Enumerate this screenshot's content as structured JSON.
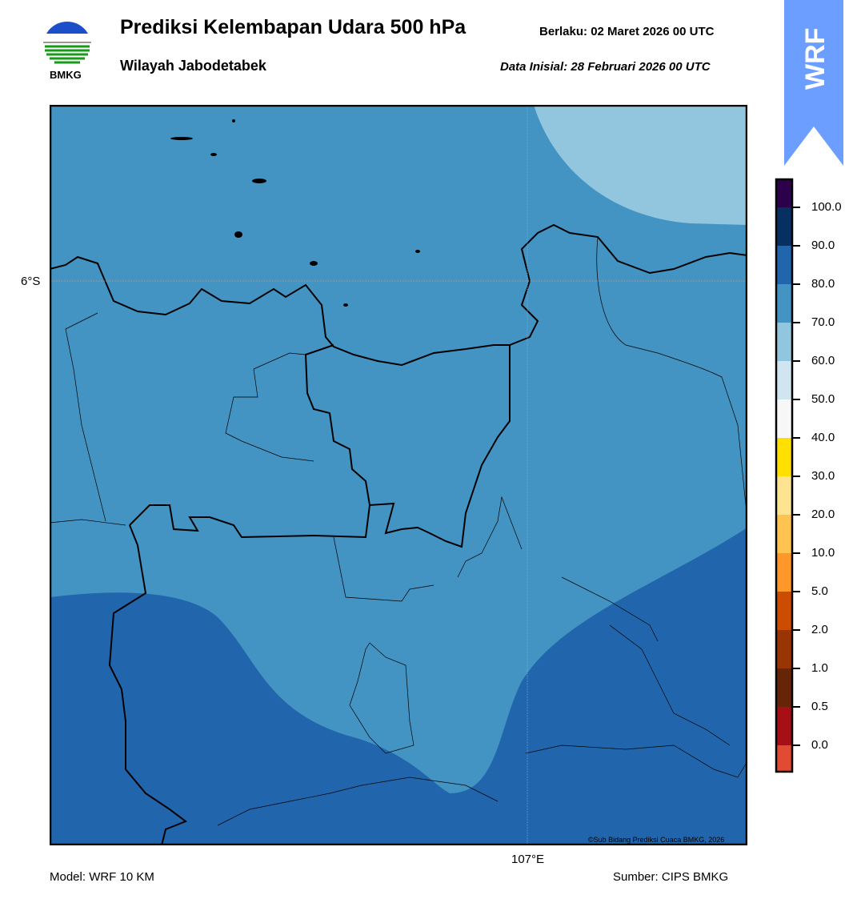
{
  "header": {
    "title": "Prediksi Kelembapan Udara 500 hPa",
    "subtitle": "Wilayah Jabodetabek",
    "valid": "Berlaku:  02 Maret 2026 00 UTC",
    "init": "Data Inisial:  28 Februari 2026 00 UTC"
  },
  "logo": {
    "text": "BMKG"
  },
  "badge": {
    "text": "WRF",
    "color": "#6b9eff"
  },
  "map": {
    "lat_label": "6°S",
    "lon_label": "107°E",
    "copyright": "©Sub Bidang Prediksi Cuaca BMKG, 2026",
    "fill_colors": {
      "base": "#4393c3",
      "light": "#92c5de",
      "dark": "#2166ac"
    }
  },
  "footer": {
    "model": "Model: WRF 10 KM",
    "source": "Sumber: CIPS BMKG"
  },
  "colorbar": {
    "labels": [
      "100.0",
      "90.0",
      "80.0",
      "70.0",
      "60.0",
      "50.0",
      "40.0",
      "30.0",
      "20.0",
      "10.0",
      "5.0",
      "2.0",
      "1.0",
      "0.5",
      "0.0"
    ],
    "colors": [
      "#2d004b",
      "#053061",
      "#2166ac",
      "#4393c3",
      "#92c5de",
      "#d1e5f0",
      "#f7f7f7",
      "#ffe000",
      "#fee391",
      "#fec44f",
      "#fe9929",
      "#cc4c02",
      "#993404",
      "#662506",
      "#a50f15",
      "#e34a33"
    ]
  }
}
